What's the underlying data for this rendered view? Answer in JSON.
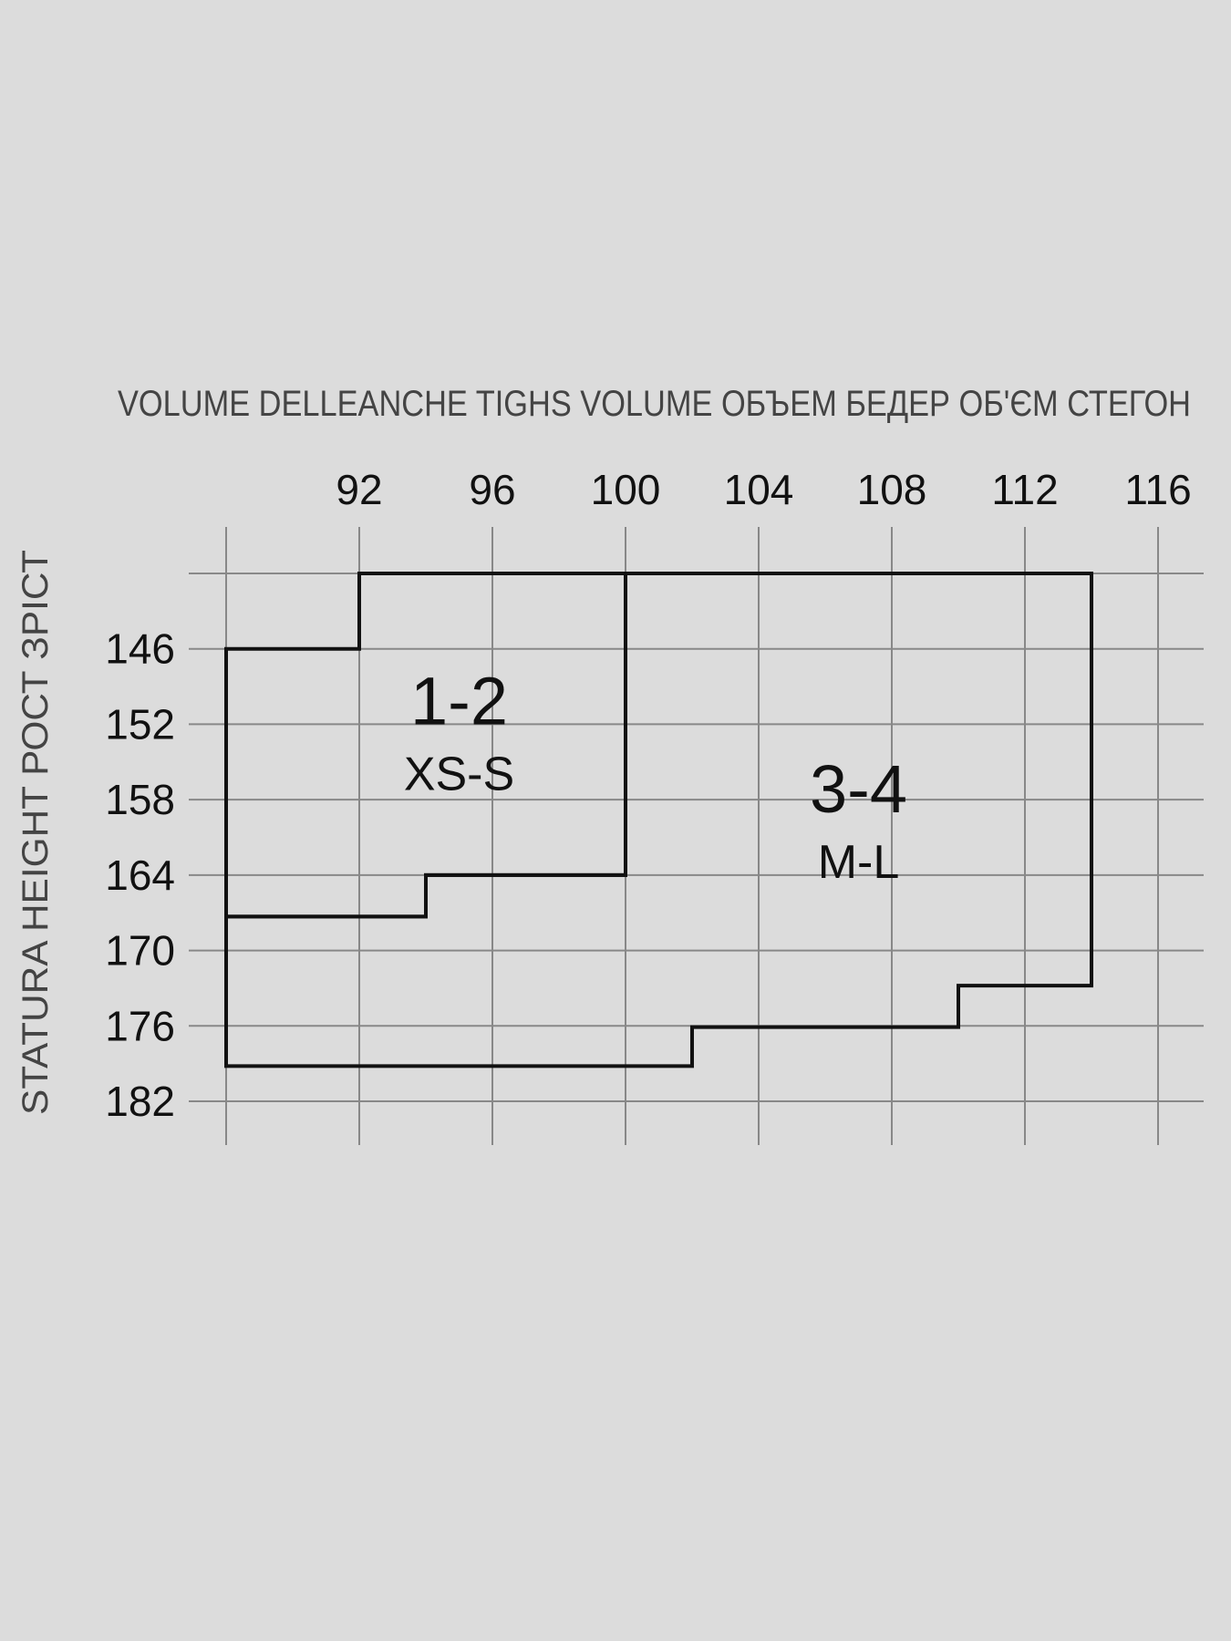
{
  "chart_data": {
    "type": "size-chart",
    "title": "VOLUME DELLEANCHE  TIGHS VOLUME  ОБЪЕМ БЕДЕР  ОБ'ЄМ СТЕГОН",
    "xlabel": "",
    "ylabel": "STATURA  HEIGHT  РОСТ  ЗРІСТ",
    "x_ticks": [
      "92",
      "96",
      "100",
      "104",
      "108",
      "112",
      "116"
    ],
    "y_ticks": [
      "146",
      "152",
      "158",
      "164",
      "170",
      "176",
      "182"
    ],
    "x_grid": [
      88,
      92,
      96,
      100,
      104,
      108,
      112,
      116
    ],
    "y_grid": [
      140,
      146,
      152,
      158,
      164,
      170,
      176,
      182
    ],
    "xlim": [
      88,
      116
    ],
    "ylim": [
      140,
      182
    ],
    "grid": true,
    "zones": [
      {
        "label": "1-2",
        "sublabel": "XS-S",
        "center": [
          95,
          152
        ],
        "outline": [
          [
            88,
            146
          ],
          [
            92,
            146
          ],
          [
            92,
            140
          ],
          [
            100,
            140
          ],
          [
            100,
            164
          ],
          [
            94,
            164
          ],
          [
            94,
            167.3
          ],
          [
            88,
            167.3
          ]
        ]
      },
      {
        "label": "3-4",
        "sublabel": "M-L",
        "center": [
          107,
          159
        ],
        "outline": [
          [
            100,
            140
          ],
          [
            114,
            140
          ],
          [
            114,
            172.8
          ],
          [
            110,
            172.8
          ],
          [
            110,
            176.1
          ],
          [
            102,
            176.1
          ],
          [
            102,
            179.2
          ],
          [
            88,
            179.2
          ],
          [
            88,
            167.3
          ],
          [
            94,
            167.3
          ],
          [
            94,
            164
          ],
          [
            100,
            164
          ]
        ]
      }
    ],
    "colors": {
      "background": "#dcdcdc",
      "grid": "#888888",
      "outline": "#111111"
    }
  }
}
